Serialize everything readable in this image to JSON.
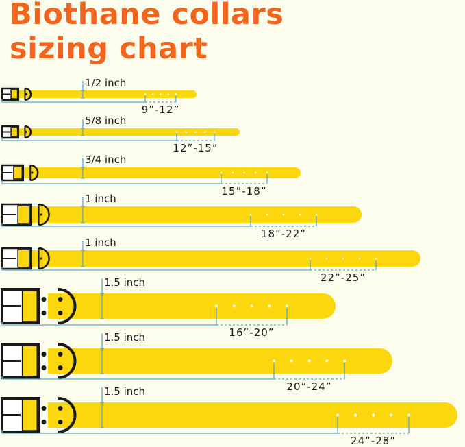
{
  "title_line1": "Biothane collars",
  "title_line2": "sizing chart",
  "colors": {
    "title": "#f0661e",
    "strap": "#fcd70e",
    "measure_line": "#5aa8c8",
    "background": "#fdfdee",
    "hardware": "#1a1a1a"
  },
  "collars": [
    {
      "width": "1/2 inch",
      "size": "9”-12”"
    },
    {
      "width": "5/8 inch",
      "size": "12”-15”"
    },
    {
      "width": "3/4 inch",
      "size": "15”-18”"
    },
    {
      "width": "1 inch",
      "size": "18”-22”"
    },
    {
      "width": "1 inch",
      "size": "22”-25”"
    },
    {
      "width": "1.5 inch",
      "size": "16”-20”"
    },
    {
      "width": "1.5 inch",
      "size": "20”-24”"
    },
    {
      "width": "1.5 inch",
      "size": "24”-28”"
    }
  ]
}
